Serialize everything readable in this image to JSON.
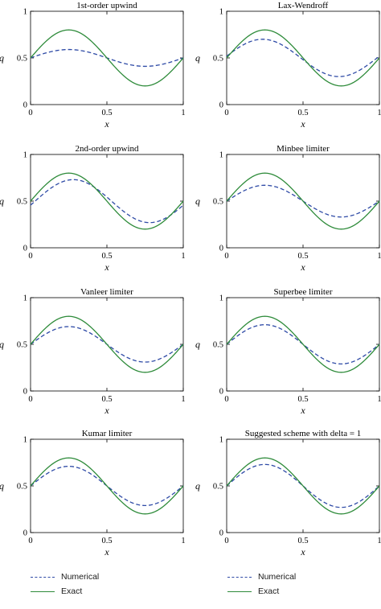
{
  "colors": {
    "numerical": "#2e4aa6",
    "exact": "#2e8b3a",
    "axis": "#000000"
  },
  "chart_data": [
    {
      "type": "line",
      "title": "1st-order upwind",
      "xlabel": "x",
      "ylabel": "q",
      "xlim": [
        0,
        1
      ],
      "ylim": [
        0,
        1
      ],
      "xticks": [
        "0",
        "0.5",
        "1"
      ],
      "yticks": [
        "0",
        "0.5",
        "1"
      ],
      "series": [
        {
          "name": "Numerical",
          "style": "dashed",
          "mean": 0.5,
          "amplitude": 0.09,
          "phase": 0.0
        },
        {
          "name": "Exact",
          "style": "solid",
          "mean": 0.5,
          "amplitude": 0.3,
          "phase": 0.0
        }
      ]
    },
    {
      "type": "line",
      "title": "Lax-Wendroff",
      "xlabel": "x",
      "ylabel": "q",
      "xlim": [
        0,
        1
      ],
      "ylim": [
        0,
        1
      ],
      "xticks": [
        "0",
        "0.5",
        "1"
      ],
      "yticks": [
        "0",
        "0.5",
        "1"
      ],
      "series": [
        {
          "name": "Numerical",
          "style": "dashed",
          "mean": 0.5,
          "amplitude": 0.2,
          "phase": -0.015
        },
        {
          "name": "Exact",
          "style": "solid",
          "mean": 0.5,
          "amplitude": 0.3,
          "phase": 0.0
        }
      ]
    },
    {
      "type": "line",
      "title": "2nd-order upwind",
      "xlabel": "x",
      "ylabel": "q",
      "xlim": [
        0,
        1
      ],
      "ylim": [
        0,
        1
      ],
      "xticks": [
        "0",
        "0.5",
        "1"
      ],
      "yticks": [
        "0",
        "0.5",
        "1"
      ],
      "series": [
        {
          "name": "Numerical",
          "style": "dashed",
          "mean": 0.5,
          "amplitude": 0.23,
          "phase": 0.03
        },
        {
          "name": "Exact",
          "style": "solid",
          "mean": 0.5,
          "amplitude": 0.3,
          "phase": 0.0
        }
      ]
    },
    {
      "type": "line",
      "title": "Minbee limiter",
      "xlabel": "x",
      "ylabel": "q",
      "xlim": [
        0,
        1
      ],
      "ylim": [
        0,
        1
      ],
      "xticks": [
        "0",
        "0.5",
        "1"
      ],
      "yticks": [
        "0",
        "0.5",
        "1"
      ],
      "series": [
        {
          "name": "Numerical",
          "style": "dashed",
          "mean": 0.5,
          "amplitude": 0.17,
          "phase": 0.0
        },
        {
          "name": "Exact",
          "style": "solid",
          "mean": 0.5,
          "amplitude": 0.3,
          "phase": 0.0
        }
      ]
    },
    {
      "type": "line",
      "title": "Vanleer limiter",
      "xlabel": "x",
      "ylabel": "q",
      "xlim": [
        0,
        1
      ],
      "ylim": [
        0,
        1
      ],
      "xticks": [
        "0",
        "0.5",
        "1"
      ],
      "yticks": [
        "0",
        "0.5",
        "1"
      ],
      "series": [
        {
          "name": "Numerical",
          "style": "dashed",
          "mean": 0.5,
          "amplitude": 0.19,
          "phase": 0.0
        },
        {
          "name": "Exact",
          "style": "solid",
          "mean": 0.5,
          "amplitude": 0.3,
          "phase": 0.0
        }
      ]
    },
    {
      "type": "line",
      "title": "Superbee limiter",
      "xlabel": "x",
      "ylabel": "q",
      "xlim": [
        0,
        1
      ],
      "ylim": [
        0,
        1
      ],
      "xticks": [
        "0",
        "0.5",
        "1"
      ],
      "yticks": [
        "0",
        "0.5",
        "1"
      ],
      "series": [
        {
          "name": "Numerical",
          "style": "dashed",
          "mean": 0.5,
          "amplitude": 0.21,
          "phase": 0.0
        },
        {
          "name": "Exact",
          "style": "solid",
          "mean": 0.5,
          "amplitude": 0.3,
          "phase": 0.0
        }
      ]
    },
    {
      "type": "line",
      "title": "Kumar limiter",
      "xlabel": "x",
      "ylabel": "q",
      "xlim": [
        0,
        1
      ],
      "ylim": [
        0,
        1
      ],
      "xticks": [
        "0",
        "0.5",
        "1"
      ],
      "yticks": [
        "0",
        "0.5",
        "1"
      ],
      "series": [
        {
          "name": "Numerical",
          "style": "dashed",
          "mean": 0.5,
          "amplitude": 0.21,
          "phase": 0.0
        },
        {
          "name": "Exact",
          "style": "solid",
          "mean": 0.5,
          "amplitude": 0.3,
          "phase": 0.0
        }
      ]
    },
    {
      "type": "line",
      "title": "Suggested scheme with delta = 1",
      "xlabel": "x",
      "ylabel": "q",
      "xlim": [
        0,
        1
      ],
      "ylim": [
        0,
        1
      ],
      "xticks": [
        "0",
        "0.5",
        "1"
      ],
      "yticks": [
        "0",
        "0.5",
        "1"
      ],
      "series": [
        {
          "name": "Numerical",
          "style": "dashed",
          "mean": 0.5,
          "amplitude": 0.23,
          "phase": 0.0
        },
        {
          "name": "Exact",
          "style": "solid",
          "mean": 0.5,
          "amplitude": 0.3,
          "phase": 0.0
        }
      ]
    }
  ],
  "legends": [
    {
      "items": [
        "Numerical",
        "Exact"
      ]
    },
    {
      "items": [
        "Numerical",
        "Exact"
      ]
    }
  ]
}
